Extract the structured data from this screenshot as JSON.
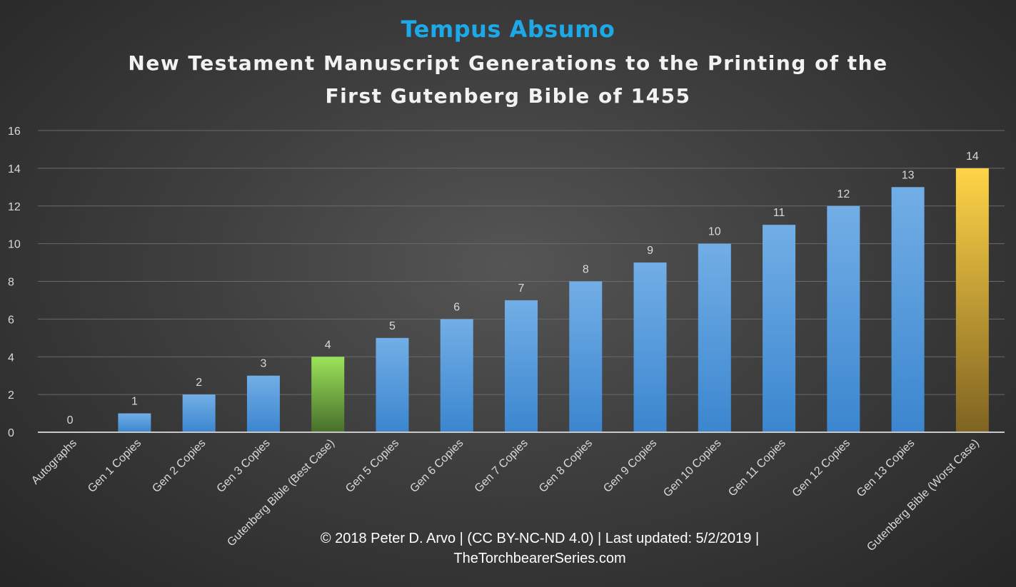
{
  "title": "Tempus Absumo",
  "subtitle_lines": [
    "New Testament Manuscript Generations to the Printing of the",
    "First Gutenberg Bible of 1455"
  ],
  "footer_lines": [
    "© 2018 Peter D. Arvo | (CC BY-NC-ND 4.0) | Last updated: 5/2/2019 |",
    "TheTorchbearerSeries.com"
  ],
  "colors": {
    "title": "#1da8e8",
    "bar_blue_top": "#72aee6",
    "bar_blue_bottom": "#3b86cf",
    "bar_green_top": "#9be35a",
    "bar_green_bottom": "#476f2a",
    "bar_gold_top": "#ffd447",
    "bar_gold_bottom": "#7f6322",
    "text": "#d9d9d9",
    "grid": "#6a6a6a",
    "baseline": "#c8c8c8"
  },
  "chart_data": {
    "type": "bar",
    "categories": [
      "Autographs",
      "Gen 1  Copies",
      "Gen 2  Copies",
      "Gen 3  Copies",
      "Gutenberg Bible (Best Case)",
      "Gen 5  Copies",
      "Gen 6 Copies",
      "Gen 7  Copies",
      "Gen 8 Copies",
      "Gen 9  Copies",
      "Gen 10  Copies",
      "Gen 11  Copies",
      "Gen 12  Copies",
      "Gen 13  Copies",
      "Gutenberg Bible (Worst Case)"
    ],
    "values": [
      0,
      1,
      2,
      3,
      4,
      5,
      6,
      7,
      8,
      9,
      10,
      11,
      12,
      13,
      14
    ],
    "bar_colors": [
      "blue",
      "blue",
      "blue",
      "blue",
      "green",
      "blue",
      "blue",
      "blue",
      "blue",
      "blue",
      "blue",
      "blue",
      "blue",
      "blue",
      "gold"
    ],
    "ylim": [
      0,
      16
    ],
    "yticks": [
      0,
      2,
      4,
      6,
      8,
      10,
      12,
      14,
      16
    ],
    "grid": true,
    "data_labels": true,
    "xlabel": "",
    "ylabel": ""
  }
}
